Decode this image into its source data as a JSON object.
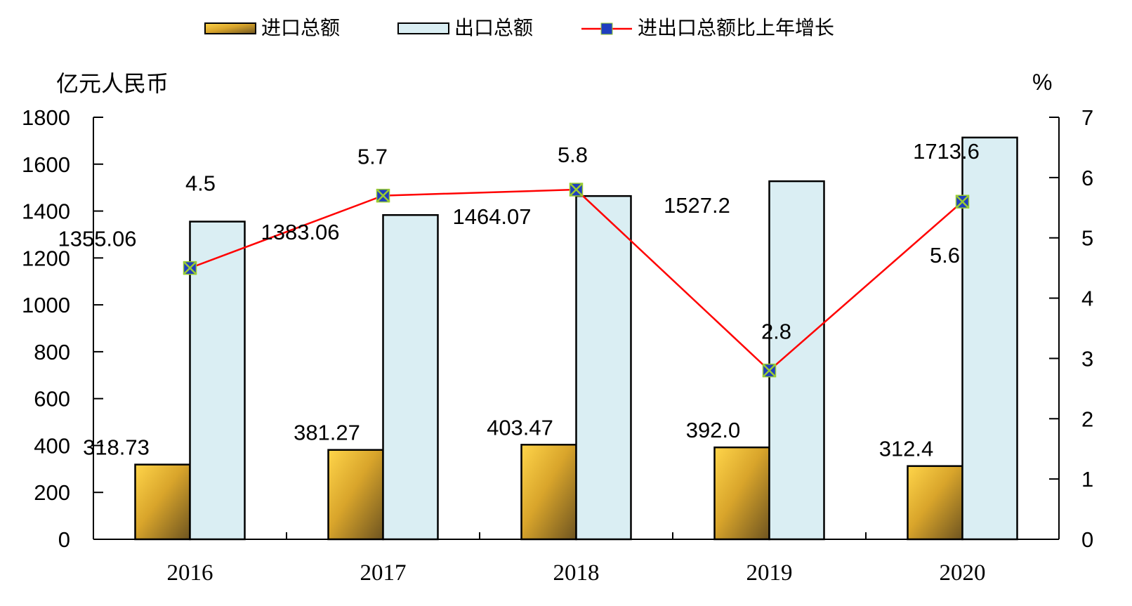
{
  "chart_data": {
    "type": "bar",
    "categories": [
      "2016",
      "2017",
      "2018",
      "2019",
      "2020"
    ],
    "series": [
      {
        "name": "进口总额",
        "type": "bar",
        "axis": "left",
        "values": [
          318.73,
          381.27,
          403.47,
          392.0,
          312.4
        ],
        "labels": [
          "318.73",
          "381.27",
          "403.47",
          "392.0",
          "312.4"
        ],
        "color": "#D9A52B"
      },
      {
        "name": "出口总额",
        "type": "bar",
        "axis": "left",
        "values": [
          1355.06,
          1383.06,
          1464.07,
          1527.2,
          1713.6
        ],
        "labels": [
          "1355.06",
          "1383.06",
          "1464.07",
          "1527.2",
          "1713.6"
        ],
        "color": "#DAEEF3"
      },
      {
        "name": "进出口总额比上年增长",
        "type": "line",
        "axis": "right",
        "values": [
          4.5,
          5.7,
          5.8,
          2.8,
          5.6
        ],
        "labels": [
          "4.5",
          "5.7",
          "5.8",
          "2.8",
          "5.6"
        ],
        "color": "#FF0000",
        "marker_color": "#1F3FBF"
      }
    ],
    "y_left": {
      "label": "亿元人民币",
      "ylim": [
        0,
        1800
      ],
      "ticks": [
        "0",
        "200",
        "400",
        "600",
        "800",
        "1000",
        "1200",
        "1400",
        "1600",
        "1800"
      ]
    },
    "y_right": {
      "label": "%",
      "ylim": [
        0,
        7
      ],
      "ticks": [
        "0",
        "1",
        "2",
        "3",
        "4",
        "5",
        "6",
        "7"
      ]
    },
    "legend": {
      "position": "top",
      "items": [
        "进口总额",
        "出口总额",
        "进出口总额比上年增长"
      ]
    },
    "grid": false
  }
}
